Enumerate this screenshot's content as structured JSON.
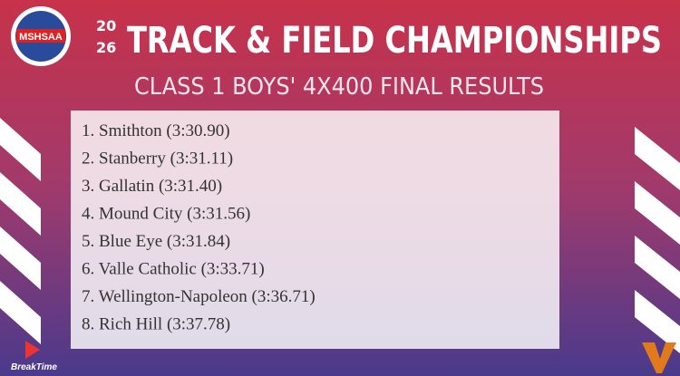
{
  "logo": {
    "name": "MSHSAA"
  },
  "header": {
    "year_lines": [
      "20",
      "26"
    ],
    "title": "TRACK & FIELD CHAMPIONSHIPS",
    "subtitle": "CLASS 1 BOYS' 4X400 FINAL RESULTS"
  },
  "results": [
    "1. Smithton (3:30.90)",
    "2. Stanberry (3:31.11)",
    "3. Gallatin (3:31.40)",
    "4. Mound City (3:31.56)",
    "5. Blue Eye (3:31.84)",
    "6. Valle Catholic (3:33.71)",
    "7. Wellington-Napoleon (3:36.71)",
    "8. Rich Hill (3:37.78)"
  ],
  "sponsor": "BreakTime"
}
